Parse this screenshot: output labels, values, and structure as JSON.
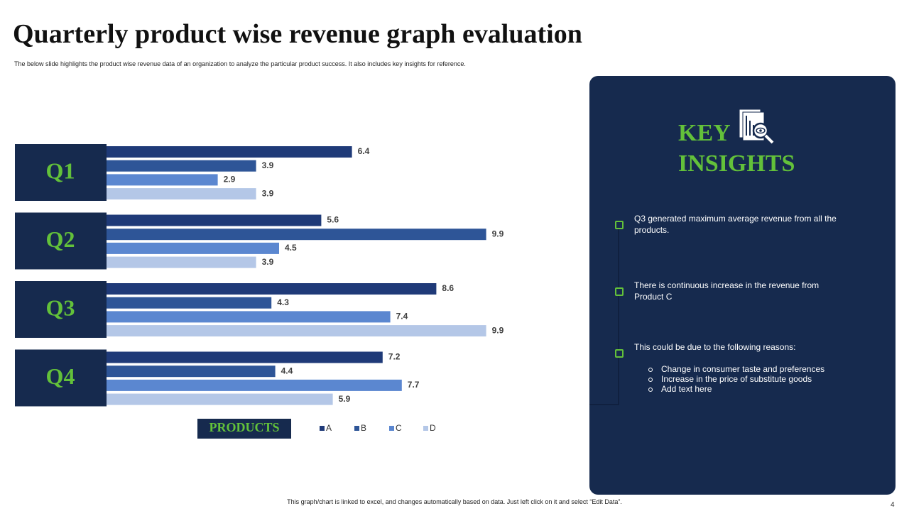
{
  "slide": {
    "title": "Quarterly product wise revenue graph evaluation",
    "subtitle": "The below slide highlights the product wise revenue data of an organization to analyze the particular product success. It also includes key insights for reference.",
    "footer": "This graph/chart is linked to excel, and changes automatically based on data. Just left click on it and select “Edit Data”.",
    "page_number": "4"
  },
  "insights": {
    "heading": "KEY INSIGHTS",
    "points": [
      "Q3 generated maximum average revenue from all the products.",
      "There is continuous increase in the revenue from Product C",
      "This could be due to the following reasons:"
    ],
    "sub_points": [
      "Change in consumer taste and preferences",
      "Increase in the price of substitute goods",
      "Add text here"
    ]
  },
  "chart_data": {
    "type": "hbar",
    "legend_title": "PRODUCTS",
    "categories": [
      "Q1",
      "Q2",
      "Q3",
      "Q4"
    ],
    "series": [
      {
        "name": "A",
        "color": "#1f3a78",
        "values": [
          6.4,
          5.6,
          8.6,
          7.2
        ]
      },
      {
        "name": "B",
        "color": "#2e5597",
        "values": [
          3.9,
          9.9,
          4.3,
          4.4
        ]
      },
      {
        "name": "C",
        "color": "#5b87d0",
        "values": [
          2.9,
          4.5,
          7.4,
          7.7
        ]
      },
      {
        "name": "D",
        "color": "#b4c7e7",
        "values": [
          3.9,
          3.9,
          9.9,
          5.9
        ]
      }
    ],
    "xlim": [
      0,
      10
    ]
  }
}
